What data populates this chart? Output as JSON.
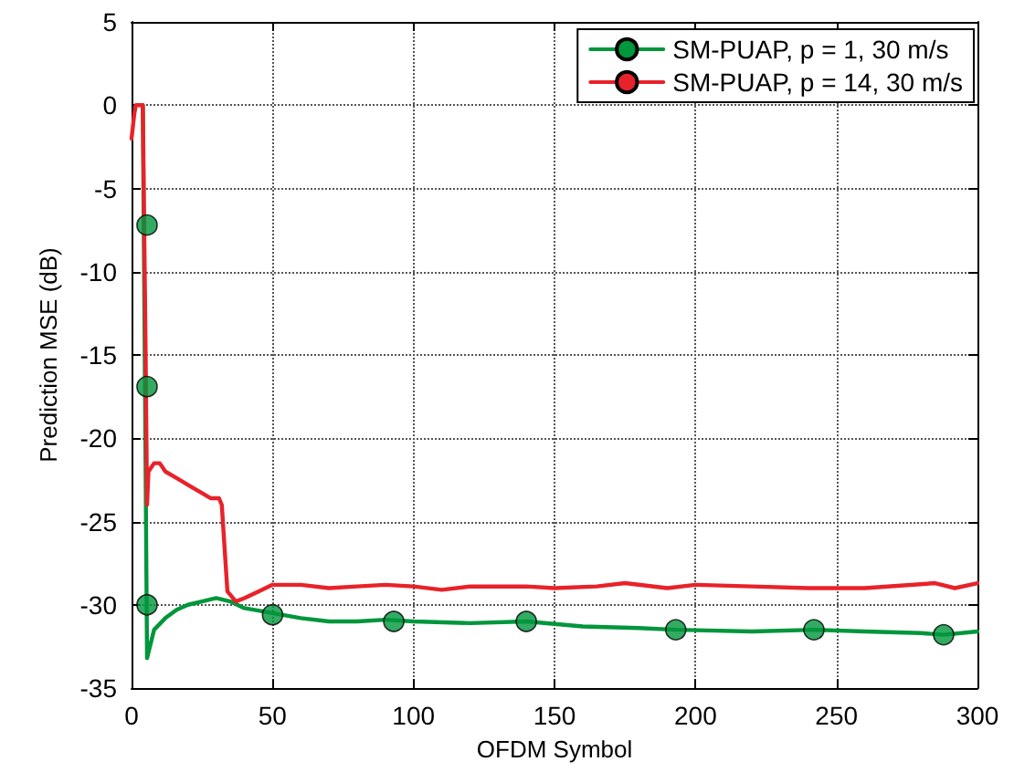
{
  "chart_data": {
    "type": "line",
    "xlabel": "OFDM Symbol",
    "ylabel": "Prediction MSE (dB)",
    "xlim": [
      0,
      300
    ],
    "xticks": [
      0,
      50,
      100,
      150,
      200,
      250,
      300
    ],
    "ylim": [
      -35,
      5
    ],
    "yticks": [
      -35,
      -30,
      -25,
      -20,
      -15,
      -10,
      -5,
      0,
      5
    ],
    "grid": true,
    "legend": "top right",
    "line_style": "solid",
    "series": [
      {
        "name": "SM-PUAP, p = 1, 30 m/s",
        "color": "#00963c",
        "marker": "none",
        "x": [
          4,
          5.5,
          8,
          12,
          16,
          20,
          25,
          30,
          35,
          40,
          50,
          60,
          70,
          80,
          90,
          100,
          120,
          140,
          160,
          180,
          193,
          220,
          242,
          260,
          280,
          288,
          300
        ],
        "values": [
          0,
          -33.2,
          -31.5,
          -30.8,
          -30.3,
          -30.0,
          -29.8,
          -29.6,
          -29.8,
          -30.2,
          -30.5,
          -30.8,
          -31.0,
          -31.0,
          -30.9,
          -31.0,
          -31.1,
          -31.0,
          -31.3,
          -31.4,
          -31.5,
          -31.6,
          -31.5,
          -31.6,
          -31.7,
          -31.8,
          -31.6
        ]
      },
      {
        "type": "scatter",
        "color": "#00963c",
        "marker": "circle",
        "x": [
          5.5,
          5.5,
          5.5,
          50,
          93,
          140,
          193,
          242,
          288
        ],
        "values": [
          -7.2,
          -16.9,
          -30,
          -30.6,
          -31,
          -31,
          -31.5,
          -31.5,
          -31.8
        ]
      },
      {
        "name": "SM-PUAP, p = 14, 30 m/s",
        "color": "#e8222a",
        "marker": "none",
        "x": [
          0,
          1,
          1.5,
          4,
          5,
          5.5,
          6,
          8,
          10,
          12,
          15,
          18,
          20,
          25,
          28,
          31,
          32,
          34,
          37,
          40,
          45,
          50,
          60,
          70,
          80,
          90,
          100,
          110,
          120,
          140,
          150,
          165,
          175,
          190,
          200,
          220,
          240,
          260,
          285,
          292,
          300
        ],
        "values": [
          -2,
          -0.5,
          0,
          0,
          -15,
          -24,
          -22,
          -21.5,
          -21.5,
          -22,
          -22.3,
          -22.6,
          -22.8,
          -23.3,
          -23.6,
          -23.6,
          -24,
          -29.2,
          -29.8,
          -29.6,
          -29.2,
          -28.8,
          -28.8,
          -29.0,
          -28.9,
          -28.8,
          -28.9,
          -29.1,
          -28.9,
          -28.9,
          -29.0,
          -28.9,
          -28.7,
          -29.0,
          -28.8,
          -28.9,
          -29.0,
          -29.0,
          -28.7,
          -29.0,
          -28.7
        ]
      }
    ]
  }
}
